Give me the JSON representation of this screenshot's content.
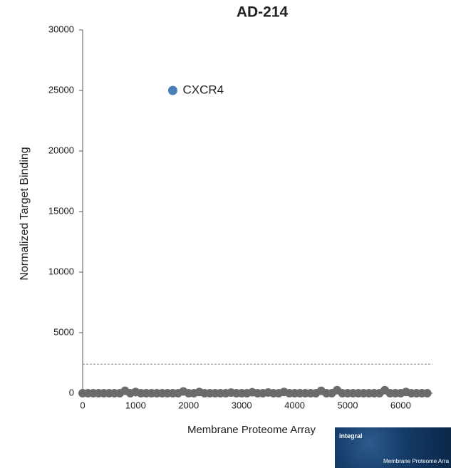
{
  "chart_data": {
    "type": "scatter",
    "title": "AD-214",
    "x_label": "Membrane Proteome Array",
    "y_label": "Normalized Target Binding",
    "xlim": [
      0,
      6600
    ],
    "ylim": [
      0,
      30000
    ],
    "xticks": [
      0,
      1000,
      2000,
      3000,
      4000,
      5000,
      6000
    ],
    "yticks": [
      0,
      5000,
      10000,
      15000,
      20000,
      25000,
      30000
    ],
    "threshold": 2400,
    "series": [
      {
        "color": "#6b6b6b",
        "x": [
          0,
          100,
          200,
          300,
          400,
          500,
          600,
          700,
          800,
          900,
          1000,
          1100,
          1200,
          1300,
          1400,
          1500,
          1600,
          1700,
          1800,
          1900,
          2000,
          2100,
          2200,
          2300,
          2400,
          2500,
          2600,
          2700,
          2800,
          2900,
          3000,
          3100,
          3200,
          3300,
          3400,
          3500,
          3600,
          3700,
          3800,
          3900,
          4000,
          4100,
          4200,
          4300,
          4400,
          4500,
          4600,
          4700,
          4800,
          4900,
          5000,
          5100,
          5200,
          5300,
          5400,
          5500,
          5600,
          5700,
          5800,
          5900,
          6000,
          6100,
          6200,
          6300,
          6400,
          6500
        ],
        "values": [
          0,
          0,
          0,
          0,
          0,
          0,
          0,
          0,
          200,
          0,
          100,
          0,
          0,
          0,
          0,
          0,
          0,
          0,
          0,
          150,
          0,
          0,
          100,
          0,
          0,
          0,
          0,
          0,
          50,
          0,
          0,
          0,
          80,
          0,
          0,
          60,
          0,
          0,
          100,
          0,
          0,
          0,
          0,
          0,
          0,
          200,
          0,
          0,
          250,
          0,
          0,
          0,
          0,
          0,
          0,
          0,
          0,
          250,
          0,
          0,
          0,
          100,
          0,
          0,
          0,
          0
        ]
      },
      {
        "name": "CXCR4",
        "color": "#4a7ebb",
        "x": [
          1700
        ],
        "values": [
          25000
        ]
      }
    ]
  },
  "logo": {
    "brand": "integral",
    "caption": "Membrane Proteome Arra"
  }
}
